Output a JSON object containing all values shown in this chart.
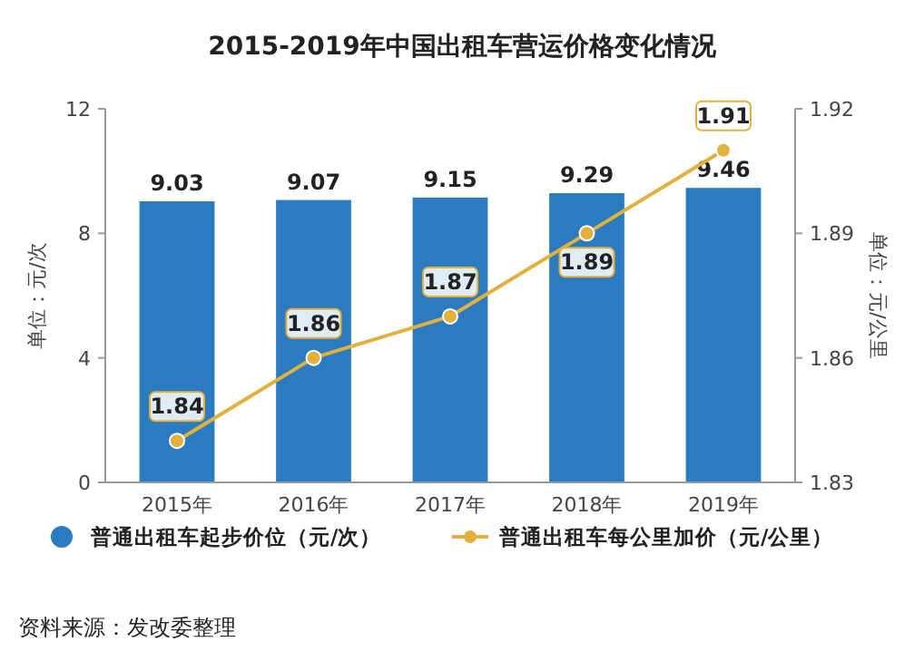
{
  "chart_data": {
    "type": "bar",
    "title": "2015-2019年中国出租车营运价格变化情况",
    "categories": [
      "2015年",
      "2016年",
      "2017年",
      "2018年",
      "2019年"
    ],
    "ylabel": "单位：元/次",
    "y2label": "单位：元/公里",
    "ylim": [
      0,
      12
    ],
    "yticks": [
      0,
      4,
      8,
      12
    ],
    "y2lim": [
      1.83,
      1.92
    ],
    "y2ticks": [
      1.83,
      1.86,
      1.89,
      1.92
    ],
    "series": [
      {
        "name": "普通出租车起步价位（元/次）",
        "color": "#2a7bc0",
        "values": [
          9.03,
          9.07,
          9.15,
          9.29,
          9.46
        ]
      },
      {
        "name": "普通出租车每公里加价（元/公里）",
        "type": "line",
        "axis": "y2",
        "color": "#e2b13c",
        "values": [
          1.84,
          1.86,
          1.87,
          1.89,
          1.91
        ]
      }
    ],
    "marker": "circle",
    "data_labels": true,
    "legend": "bottom",
    "grid": false,
    "annotations": [
      "资料来源：发改委整理"
    ]
  }
}
